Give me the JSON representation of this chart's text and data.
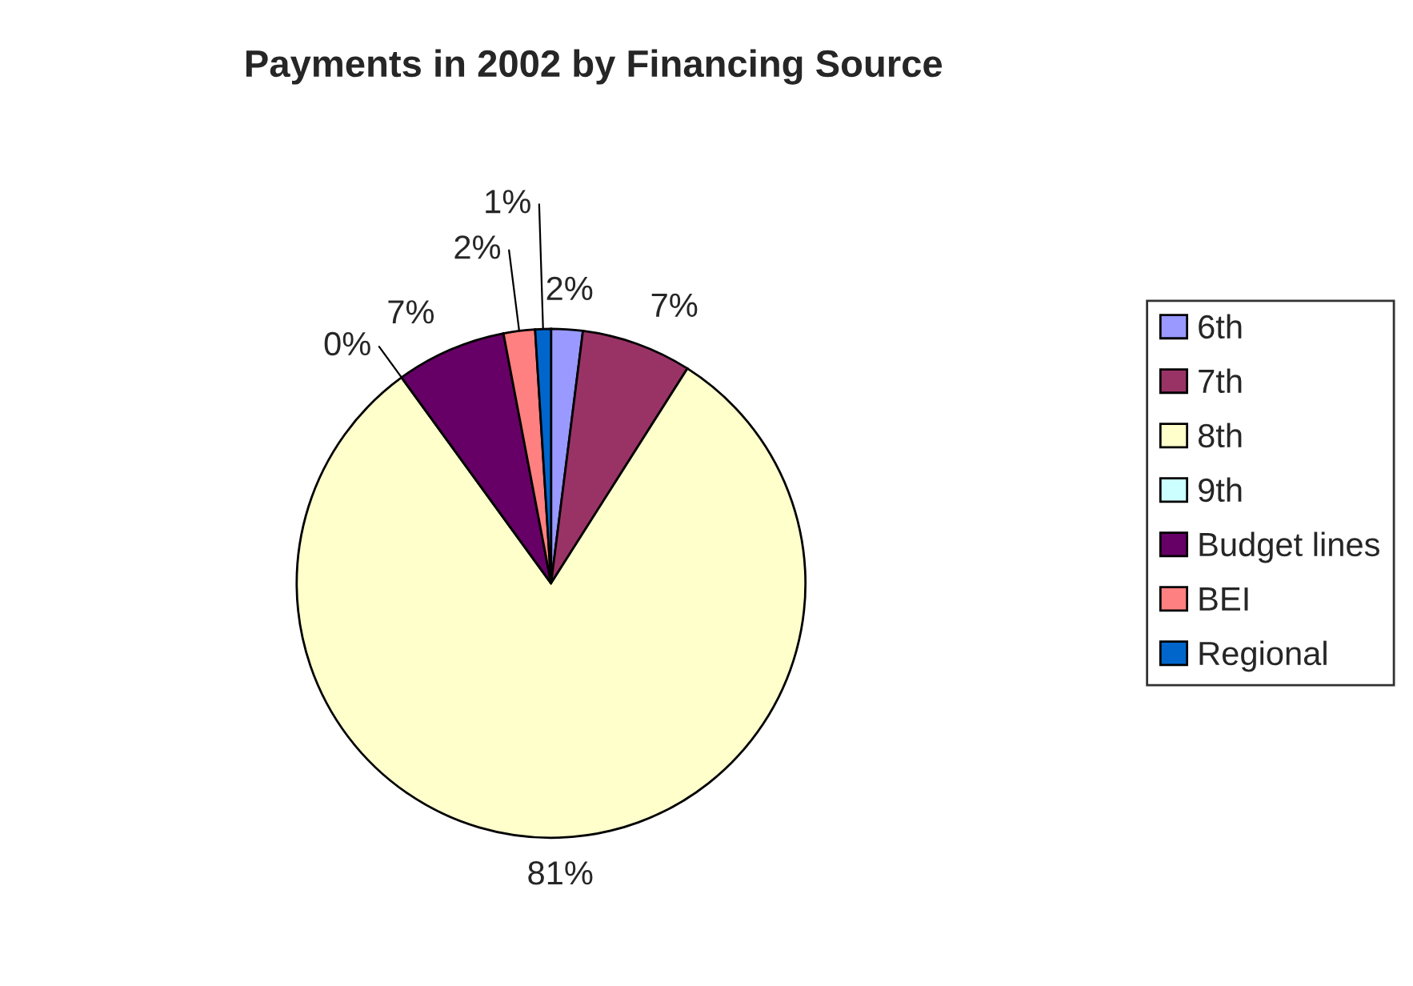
{
  "chart_data": {
    "type": "pie",
    "title": "Payments in 2002 by Financing Source",
    "categories": [
      "6th",
      "7th",
      "8th",
      "9th",
      "Budget lines",
      "BEI",
      "Regional"
    ],
    "values": [
      2,
      7,
      81,
      0,
      7,
      2,
      1
    ],
    "colors": [
      "#9999ff",
      "#993366",
      "#ffffcc",
      "#ccffff",
      "#660066",
      "#ff8080",
      "#0066cc"
    ],
    "value_labels": [
      "2%",
      "7%",
      "81%",
      "0%",
      "7%",
      "2%",
      "1%"
    ],
    "legend": "right"
  }
}
